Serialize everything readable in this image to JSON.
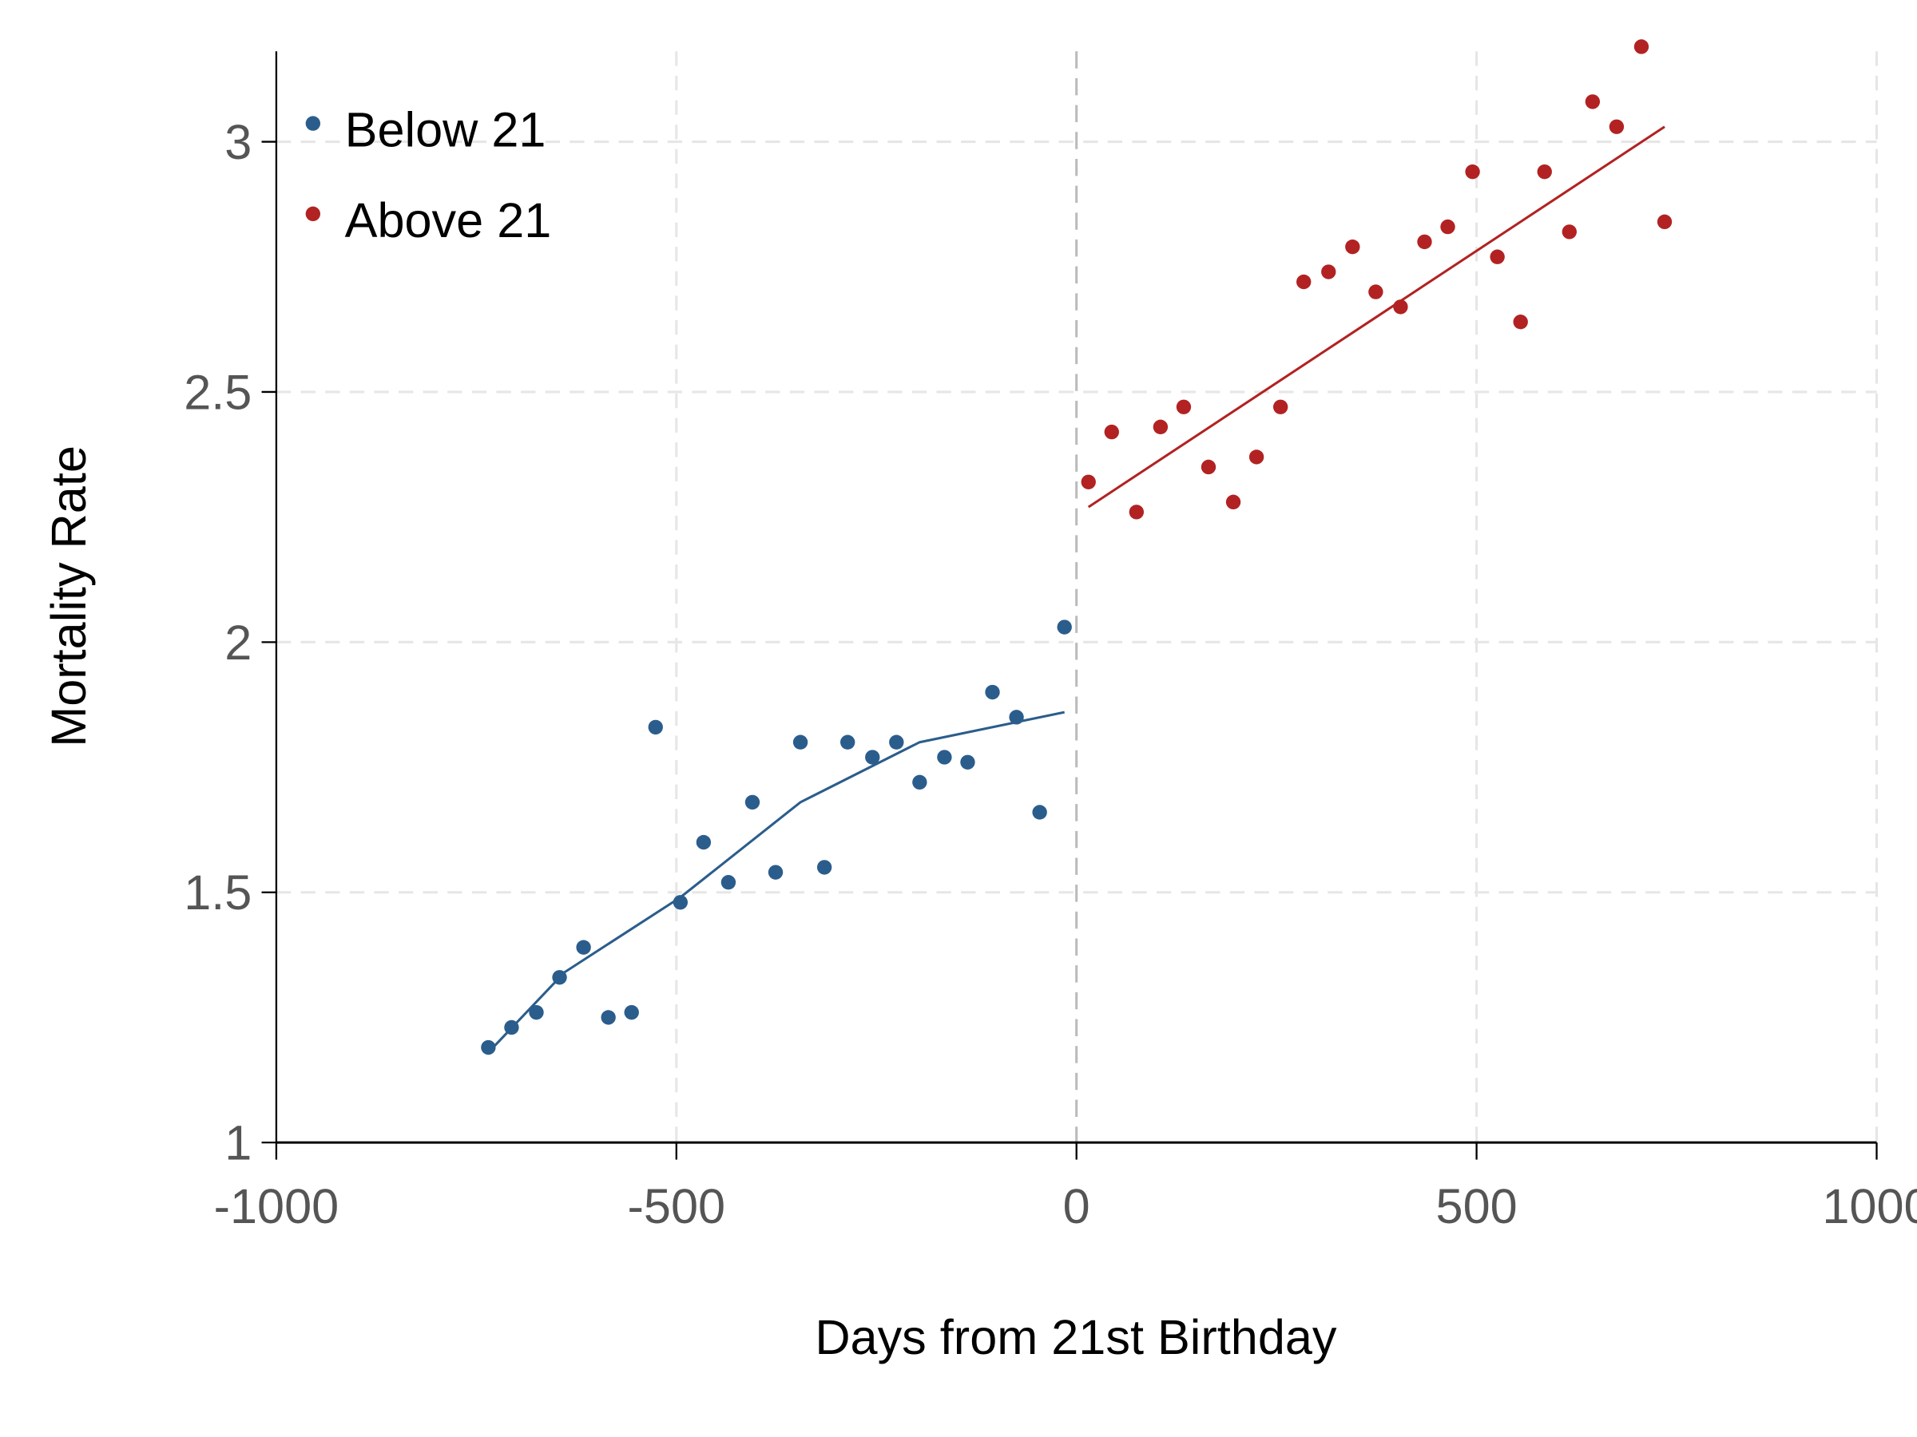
{
  "chart_data": {
    "type": "scatter",
    "title": "",
    "xlabel": "Days from 21st Birthday",
    "ylabel": "Mortality Rate",
    "xlim": [
      -1000,
      1000
    ],
    "ylim": [
      1,
      3.18
    ],
    "xticks": [
      -1000,
      -500,
      0,
      500,
      1000
    ],
    "xtick_labels": [
      "-1000",
      "-500",
      "0",
      "500",
      "1000"
    ],
    "yticks": [
      1,
      1.5,
      2,
      2.5,
      3
    ],
    "ytick_labels": [
      "1",
      "1.5",
      "2",
      "2.5",
      "3"
    ],
    "grid": true,
    "cutoff_line_x": 0,
    "legend_placement": "top-left",
    "series": [
      {
        "name": "Below 21",
        "color": "#2b5d8c",
        "x": [
          -735,
          -706,
          -675,
          -646,
          -616,
          -585,
          -556,
          -526,
          -495,
          -466,
          -435,
          -405,
          -376,
          -345,
          -315,
          -286,
          -255,
          -225,
          -196,
          -165,
          -136,
          -105,
          -75,
          -46,
          -15
        ],
        "y": [
          1.19,
          1.23,
          1.26,
          1.33,
          1.39,
          1.25,
          1.26,
          1.83,
          1.48,
          1.6,
          1.52,
          1.68,
          1.54,
          1.8,
          1.55,
          1.8,
          1.77,
          1.8,
          1.72,
          1.77,
          1.76,
          1.9,
          1.85,
          1.66,
          2.03
        ],
        "fit": {
          "x": [
            -735,
            -640,
            -495,
            -345,
            -196,
            -15
          ],
          "y": [
            1.18,
            1.34,
            1.49,
            1.68,
            1.8,
            1.86
          ]
        }
      },
      {
        "name": "Above 21",
        "color": "#b22222",
        "x": [
          15,
          44,
          75,
          105,
          134,
          165,
          196,
          225,
          255,
          284,
          315,
          345,
          374,
          405,
          435,
          464,
          495,
          526,
          555,
          585,
          616,
          645,
          675,
          706,
          735
        ],
        "y": [
          2.32,
          2.42,
          2.26,
          2.43,
          2.47,
          2.35,
          2.28,
          2.37,
          2.47,
          2.72,
          2.74,
          2.79,
          2.7,
          2.67,
          2.8,
          2.83,
          2.94,
          2.77,
          2.64,
          2.94,
          2.82,
          3.08,
          3.03,
          3.19,
          2.84
        ],
        "fit": {
          "x": [
            15,
            375,
            735
          ],
          "y": [
            2.27,
            2.65,
            3.03
          ]
        }
      }
    ]
  }
}
